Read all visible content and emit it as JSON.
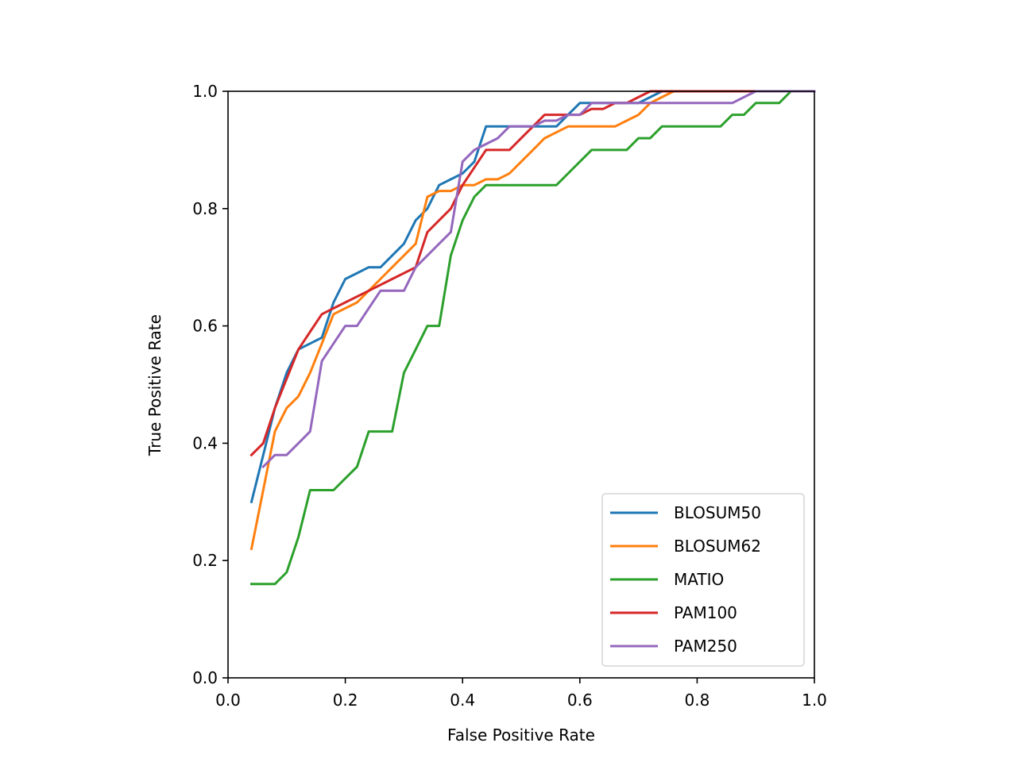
{
  "chart_data": {
    "type": "line",
    "title": "",
    "xlabel": "False Positive Rate",
    "ylabel": "True Positive Rate",
    "xlim": [
      0.0,
      1.0
    ],
    "ylim": [
      0.0,
      1.0
    ],
    "xticks": [
      "0.0",
      "0.2",
      "0.4",
      "0.6",
      "0.8",
      "1.0"
    ],
    "yticks": [
      "0.0",
      "0.2",
      "0.4",
      "0.6",
      "0.8",
      "1.0"
    ],
    "grid": false,
    "legend_position": "lower-right",
    "series": [
      {
        "name": "BLOSUM50",
        "color": "#1f77b4",
        "points": [
          [
            0.04,
            0.3
          ],
          [
            0.06,
            0.38
          ],
          [
            0.08,
            0.46
          ],
          [
            0.1,
            0.52
          ],
          [
            0.12,
            0.56
          ],
          [
            0.14,
            0.57
          ],
          [
            0.16,
            0.58
          ],
          [
            0.18,
            0.64
          ],
          [
            0.2,
            0.68
          ],
          [
            0.22,
            0.69
          ],
          [
            0.24,
            0.7
          ],
          [
            0.26,
            0.7
          ],
          [
            0.28,
            0.72
          ],
          [
            0.3,
            0.74
          ],
          [
            0.32,
            0.78
          ],
          [
            0.34,
            0.8
          ],
          [
            0.36,
            0.84
          ],
          [
            0.38,
            0.85
          ],
          [
            0.4,
            0.86
          ],
          [
            0.42,
            0.88
          ],
          [
            0.44,
            0.94
          ],
          [
            0.46,
            0.94
          ],
          [
            0.48,
            0.94
          ],
          [
            0.5,
            0.94
          ],
          [
            0.52,
            0.94
          ],
          [
            0.54,
            0.94
          ],
          [
            0.56,
            0.94
          ],
          [
            0.58,
            0.96
          ],
          [
            0.6,
            0.98
          ],
          [
            0.62,
            0.98
          ],
          [
            0.64,
            0.98
          ],
          [
            0.66,
            0.98
          ],
          [
            0.68,
            0.98
          ],
          [
            0.7,
            0.98
          ],
          [
            0.72,
            0.99
          ],
          [
            0.74,
            1.0
          ],
          [
            0.8,
            1.0
          ],
          [
            0.9,
            1.0
          ],
          [
            1.0,
            1.0
          ]
        ]
      },
      {
        "name": "BLOSUM62",
        "color": "#ff7f0e",
        "points": [
          [
            0.04,
            0.22
          ],
          [
            0.06,
            0.32
          ],
          [
            0.08,
            0.42
          ],
          [
            0.1,
            0.46
          ],
          [
            0.12,
            0.48
          ],
          [
            0.14,
            0.52
          ],
          [
            0.16,
            0.57
          ],
          [
            0.18,
            0.62
          ],
          [
            0.2,
            0.63
          ],
          [
            0.22,
            0.64
          ],
          [
            0.24,
            0.66
          ],
          [
            0.26,
            0.68
          ],
          [
            0.28,
            0.7
          ],
          [
            0.3,
            0.72
          ],
          [
            0.32,
            0.74
          ],
          [
            0.34,
            0.82
          ],
          [
            0.36,
            0.83
          ],
          [
            0.38,
            0.83
          ],
          [
            0.4,
            0.84
          ],
          [
            0.42,
            0.84
          ],
          [
            0.44,
            0.85
          ],
          [
            0.46,
            0.85
          ],
          [
            0.48,
            0.86
          ],
          [
            0.5,
            0.88
          ],
          [
            0.52,
            0.9
          ],
          [
            0.54,
            0.92
          ],
          [
            0.56,
            0.93
          ],
          [
            0.58,
            0.94
          ],
          [
            0.6,
            0.94
          ],
          [
            0.62,
            0.94
          ],
          [
            0.64,
            0.94
          ],
          [
            0.66,
            0.94
          ],
          [
            0.68,
            0.95
          ],
          [
            0.7,
            0.96
          ],
          [
            0.72,
            0.98
          ],
          [
            0.74,
            0.99
          ],
          [
            0.76,
            1.0
          ],
          [
            0.8,
            1.0
          ],
          [
            0.9,
            1.0
          ],
          [
            1.0,
            1.0
          ]
        ]
      },
      {
        "name": "MATIO",
        "color": "#2ca02c",
        "points": [
          [
            0.04,
            0.16
          ],
          [
            0.06,
            0.16
          ],
          [
            0.08,
            0.16
          ],
          [
            0.1,
            0.18
          ],
          [
            0.12,
            0.24
          ],
          [
            0.14,
            0.32
          ],
          [
            0.16,
            0.32
          ],
          [
            0.18,
            0.32
          ],
          [
            0.2,
            0.34
          ],
          [
            0.22,
            0.36
          ],
          [
            0.24,
            0.42
          ],
          [
            0.26,
            0.42
          ],
          [
            0.28,
            0.42
          ],
          [
            0.3,
            0.52
          ],
          [
            0.32,
            0.56
          ],
          [
            0.34,
            0.6
          ],
          [
            0.36,
            0.6
          ],
          [
            0.38,
            0.72
          ],
          [
            0.4,
            0.78
          ],
          [
            0.42,
            0.82
          ],
          [
            0.44,
            0.84
          ],
          [
            0.46,
            0.84
          ],
          [
            0.48,
            0.84
          ],
          [
            0.5,
            0.84
          ],
          [
            0.52,
            0.84
          ],
          [
            0.54,
            0.84
          ],
          [
            0.56,
            0.84
          ],
          [
            0.58,
            0.86
          ],
          [
            0.6,
            0.88
          ],
          [
            0.62,
            0.9
          ],
          [
            0.64,
            0.9
          ],
          [
            0.66,
            0.9
          ],
          [
            0.68,
            0.9
          ],
          [
            0.7,
            0.92
          ],
          [
            0.72,
            0.92
          ],
          [
            0.74,
            0.94
          ],
          [
            0.76,
            0.94
          ],
          [
            0.78,
            0.94
          ],
          [
            0.8,
            0.94
          ],
          [
            0.82,
            0.94
          ],
          [
            0.84,
            0.94
          ],
          [
            0.86,
            0.96
          ],
          [
            0.88,
            0.96
          ],
          [
            0.9,
            0.98
          ],
          [
            0.92,
            0.98
          ],
          [
            0.94,
            0.98
          ],
          [
            0.96,
            1.0
          ],
          [
            1.0,
            1.0
          ]
        ]
      },
      {
        "name": "PAM100",
        "color": "#d62728",
        "points": [
          [
            0.04,
            0.38
          ],
          [
            0.06,
            0.4
          ],
          [
            0.08,
            0.46
          ],
          [
            0.1,
            0.51
          ],
          [
            0.12,
            0.56
          ],
          [
            0.14,
            0.59
          ],
          [
            0.16,
            0.62
          ],
          [
            0.18,
            0.63
          ],
          [
            0.2,
            0.64
          ],
          [
            0.22,
            0.65
          ],
          [
            0.24,
            0.66
          ],
          [
            0.26,
            0.67
          ],
          [
            0.28,
            0.68
          ],
          [
            0.3,
            0.69
          ],
          [
            0.32,
            0.7
          ],
          [
            0.34,
            0.76
          ],
          [
            0.36,
            0.78
          ],
          [
            0.38,
            0.8
          ],
          [
            0.4,
            0.84
          ],
          [
            0.42,
            0.87
          ],
          [
            0.44,
            0.9
          ],
          [
            0.46,
            0.9
          ],
          [
            0.48,
            0.9
          ],
          [
            0.5,
            0.92
          ],
          [
            0.52,
            0.94
          ],
          [
            0.54,
            0.96
          ],
          [
            0.56,
            0.96
          ],
          [
            0.58,
            0.96
          ],
          [
            0.6,
            0.96
          ],
          [
            0.62,
            0.97
          ],
          [
            0.64,
            0.97
          ],
          [
            0.66,
            0.98
          ],
          [
            0.68,
            0.98
          ],
          [
            0.7,
            0.99
          ],
          [
            0.72,
            1.0
          ],
          [
            0.8,
            1.0
          ],
          [
            0.9,
            1.0
          ],
          [
            1.0,
            1.0
          ]
        ]
      },
      {
        "name": "PAM250",
        "color": "#9467bd",
        "points": [
          [
            0.06,
            0.36
          ],
          [
            0.08,
            0.38
          ],
          [
            0.1,
            0.38
          ],
          [
            0.12,
            0.4
          ],
          [
            0.14,
            0.42
          ],
          [
            0.16,
            0.54
          ],
          [
            0.18,
            0.57
          ],
          [
            0.2,
            0.6
          ],
          [
            0.22,
            0.6
          ],
          [
            0.24,
            0.63
          ],
          [
            0.26,
            0.66
          ],
          [
            0.28,
            0.66
          ],
          [
            0.3,
            0.66
          ],
          [
            0.32,
            0.7
          ],
          [
            0.34,
            0.72
          ],
          [
            0.36,
            0.74
          ],
          [
            0.38,
            0.76
          ],
          [
            0.4,
            0.88
          ],
          [
            0.42,
            0.9
          ],
          [
            0.44,
            0.91
          ],
          [
            0.46,
            0.92
          ],
          [
            0.48,
            0.94
          ],
          [
            0.5,
            0.94
          ],
          [
            0.52,
            0.94
          ],
          [
            0.54,
            0.95
          ],
          [
            0.56,
            0.95
          ],
          [
            0.58,
            0.96
          ],
          [
            0.6,
            0.96
          ],
          [
            0.62,
            0.98
          ],
          [
            0.64,
            0.98
          ],
          [
            0.66,
            0.98
          ],
          [
            0.68,
            0.98
          ],
          [
            0.7,
            0.98
          ],
          [
            0.72,
            0.98
          ],
          [
            0.74,
            0.98
          ],
          [
            0.76,
            0.98
          ],
          [
            0.78,
            0.98
          ],
          [
            0.8,
            0.98
          ],
          [
            0.82,
            0.98
          ],
          [
            0.84,
            0.98
          ],
          [
            0.86,
            0.98
          ],
          [
            0.88,
            0.99
          ],
          [
            0.9,
            1.0
          ],
          [
            0.95,
            1.0
          ],
          [
            1.0,
            1.0
          ]
        ]
      }
    ]
  }
}
